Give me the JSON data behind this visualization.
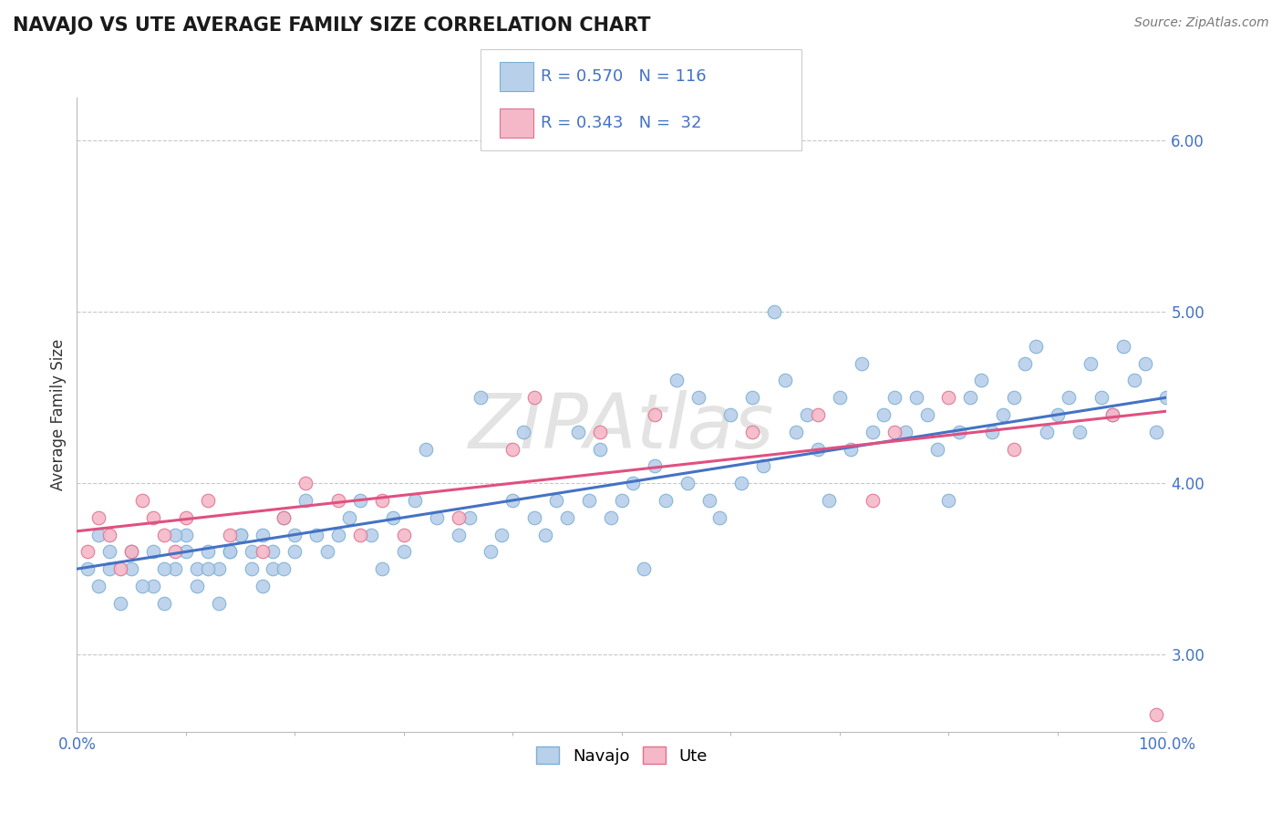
{
  "title": "NAVAJO VS UTE AVERAGE FAMILY SIZE CORRELATION CHART",
  "source_text": "Source: ZipAtlas.com",
  "ylabel": "Average Family Size",
  "xlim": [
    0,
    100
  ],
  "ylim": [
    2.55,
    6.25
  ],
  "yticks": [
    3.0,
    4.0,
    5.0,
    6.0
  ],
  "xtick_labels": [
    "0.0%",
    "100.0%"
  ],
  "background_color": "#ffffff",
  "grid_color": "#c8c8c8",
  "navajo_color": "#b8d0ea",
  "navajo_edge_color": "#7bafd4",
  "ute_color": "#f4b8c8",
  "ute_edge_color": "#e07090",
  "navajo_line_color": "#4472c4",
  "ute_line_color": "#e05080",
  "legend_navajo_R": "0.570",
  "legend_navajo_N": "116",
  "legend_ute_R": "0.343",
  "legend_ute_N": " 32",
  "watermark": "ZIPAtlas",
  "navajo_trend": [
    3.5,
    4.5
  ],
  "ute_trend": [
    3.72,
    4.42
  ],
  "navajo_x": [
    2,
    3,
    5,
    7,
    8,
    9,
    10,
    11,
    12,
    13,
    14,
    15,
    16,
    17,
    18,
    19,
    20,
    21,
    22,
    23,
    24,
    25,
    26,
    27,
    28,
    29,
    30,
    31,
    32,
    33,
    35,
    36,
    37,
    38,
    39,
    40,
    41,
    42,
    43,
    44,
    45,
    46,
    47,
    48,
    49,
    50,
    51,
    52,
    53,
    54,
    55,
    56,
    57,
    58,
    59,
    60,
    61,
    62,
    63,
    64,
    65,
    66,
    67,
    68,
    69,
    70,
    71,
    72,
    73,
    74,
    75,
    76,
    77,
    78,
    79,
    80,
    81,
    82,
    83,
    84,
    85,
    86,
    87,
    88,
    89,
    90,
    91,
    92,
    93,
    94,
    95,
    96,
    97,
    98,
    99,
    100,
    1,
    2,
    3,
    4,
    5,
    6,
    7,
    8,
    9,
    10,
    11,
    12,
    13,
    14,
    15,
    16,
    17,
    18,
    19,
    20
  ],
  "navajo_y": [
    3.7,
    3.5,
    3.6,
    3.4,
    3.3,
    3.5,
    3.7,
    3.5,
    3.6,
    3.5,
    3.6,
    3.7,
    3.6,
    3.7,
    3.5,
    3.8,
    3.6,
    3.9,
    3.7,
    3.6,
    3.7,
    3.8,
    3.9,
    3.7,
    3.5,
    3.8,
    3.6,
    3.9,
    4.2,
    3.8,
    3.7,
    3.8,
    4.5,
    3.6,
    3.7,
    3.9,
    4.3,
    3.8,
    3.7,
    3.9,
    3.8,
    4.3,
    3.9,
    4.2,
    3.8,
    3.9,
    4.0,
    3.5,
    4.1,
    3.9,
    4.6,
    4.0,
    4.5,
    3.9,
    3.8,
    4.4,
    4.0,
    4.5,
    4.1,
    5.0,
    4.6,
    4.3,
    4.4,
    4.2,
    3.9,
    4.5,
    4.2,
    4.7,
    4.3,
    4.4,
    4.5,
    4.3,
    4.5,
    4.4,
    4.2,
    3.9,
    4.3,
    4.5,
    4.6,
    4.3,
    4.4,
    4.5,
    4.7,
    4.8,
    4.3,
    4.4,
    4.5,
    4.3,
    4.7,
    4.5,
    4.4,
    4.8,
    4.6,
    4.7,
    4.3,
    4.5,
    3.5,
    3.4,
    3.6,
    3.3,
    3.5,
    3.4,
    3.6,
    3.5,
    3.7,
    3.6,
    3.4,
    3.5,
    3.3,
    3.6,
    3.7,
    3.5,
    3.4,
    3.6,
    3.5,
    3.7
  ],
  "ute_x": [
    1,
    2,
    3,
    4,
    5,
    6,
    7,
    8,
    9,
    10,
    12,
    14,
    17,
    19,
    21,
    24,
    26,
    28,
    30,
    35,
    40,
    42,
    48,
    53,
    62,
    68,
    73,
    75,
    80,
    86,
    95,
    99
  ],
  "ute_y": [
    3.6,
    3.8,
    3.7,
    3.5,
    3.6,
    3.9,
    3.8,
    3.7,
    3.6,
    3.8,
    3.9,
    3.7,
    3.6,
    3.8,
    4.0,
    3.9,
    3.7,
    3.9,
    3.7,
    3.8,
    4.2,
    4.5,
    4.3,
    4.4,
    4.3,
    4.4,
    3.9,
    4.3,
    4.5,
    4.2,
    4.4,
    2.65
  ],
  "title_fontsize": 15,
  "source_fontsize": 10,
  "tick_fontsize": 12,
  "ylabel_fontsize": 12,
  "legend_fontsize": 13,
  "watermark_fontsize": 60,
  "dot_size": 110
}
